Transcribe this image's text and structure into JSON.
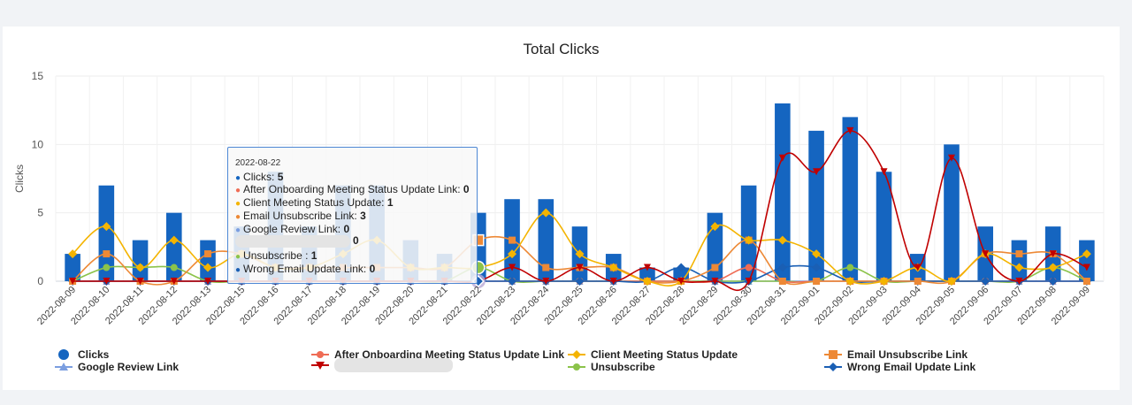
{
  "chart_data": {
    "type": "bar",
    "title": "Total Clicks",
    "ylabel": "Clicks",
    "xlabel": "",
    "ylim": [
      0,
      15
    ],
    "yticks": [
      0,
      5,
      10,
      15
    ],
    "grid": true,
    "legend_position": "bottom",
    "categories": [
      "2022-08-09",
      "2022-08-10",
      "2022-08-11",
      "2022-08-12",
      "2022-08-13",
      "2022-08-15",
      "2022-08-16",
      "2022-08-17",
      "2022-08-18",
      "2022-08-19",
      "2022-08-20",
      "2022-08-21",
      "2022-08-22",
      "2022-08-23",
      "2022-08-24",
      "2022-08-25",
      "2022-08-26",
      "2022-08-27",
      "2022-08-28",
      "2022-08-29",
      "2022-08-30",
      "2022-08-31",
      "2022-09-01",
      "2022-09-02",
      "2022-09-03",
      "2022-09-04",
      "2022-09-05",
      "2022-09-06",
      "2022-09-07",
      "2022-09-08",
      "2022-09-09"
    ],
    "series": [
      {
        "name": "Clicks",
        "kind": "bar",
        "color": "#1565c0",
        "marker": "circle",
        "values": [
          2,
          7,
          3,
          5,
          3,
          4,
          8,
          4,
          7,
          7,
          3,
          2,
          5,
          6,
          6,
          4,
          2,
          1,
          1,
          5,
          7,
          13,
          11,
          12,
          8,
          2,
          10,
          4,
          3,
          4,
          3
        ]
      },
      {
        "name": "After Onboarding Meeting Status Update Link",
        "kind": "line",
        "color": "#ef6c55",
        "marker": "circle",
        "values": [
          0,
          0,
          0,
          0,
          0,
          0,
          0,
          0,
          0,
          0,
          0,
          0,
          0,
          0,
          0,
          0,
          0,
          0,
          0,
          0,
          1,
          0,
          0,
          0,
          0,
          0,
          0,
          0,
          0,
          0,
          0
        ]
      },
      {
        "name": "Client Meeting Status Update",
        "kind": "line",
        "color": "#f4b400",
        "marker": "diamond",
        "values": [
          2,
          4,
          1,
          3,
          1,
          2,
          1,
          1,
          2,
          3,
          1,
          1,
          1,
          2,
          5,
          2,
          1,
          0,
          0,
          4,
          3,
          3,
          2,
          0,
          0,
          1,
          0,
          2,
          1,
          1,
          2
        ]
      },
      {
        "name": "Email Unsubscribe Link",
        "kind": "line",
        "color": "#ed8936",
        "marker": "square",
        "values": [
          0,
          2,
          0,
          0,
          2,
          2,
          1,
          1,
          1,
          1,
          1,
          1,
          3,
          3,
          1,
          1,
          1,
          0,
          0,
          1,
          3,
          0,
          0,
          0,
          0,
          0,
          0,
          2,
          2,
          2,
          0
        ]
      },
      {
        "name": "Google Review Link",
        "kind": "line",
        "color": "#7b9ee0",
        "marker": "triangle-up",
        "values": [
          0,
          0,
          0,
          0,
          0,
          0,
          0,
          0,
          0,
          0,
          0,
          0,
          0,
          0,
          0,
          0,
          0,
          0,
          0,
          0,
          0,
          0,
          0,
          0,
          0,
          0,
          0,
          0,
          0,
          0,
          0
        ]
      },
      {
        "name": "",
        "redacted": true,
        "kind": "line",
        "color": "#c00000",
        "marker": "triangle-down",
        "values": [
          0,
          0,
          0,
          0,
          0,
          0,
          0,
          0,
          0,
          0,
          0,
          0,
          0,
          1,
          0,
          1,
          0,
          1,
          0,
          0,
          0,
          9,
          8,
          11,
          8,
          1,
          9,
          2,
          0,
          2,
          1
        ]
      },
      {
        "name": "Unsubscribe",
        "kind": "line",
        "color": "#8bc34a",
        "marker": "circle",
        "values": [
          0,
          1,
          1,
          1,
          0,
          0,
          0,
          0,
          0,
          0,
          0,
          0,
          1,
          0,
          0,
          0,
          0,
          0,
          0,
          0,
          0,
          0,
          0,
          1,
          0,
          0,
          0,
          0,
          0,
          1,
          0
        ]
      },
      {
        "name": "Wrong Email Update Link",
        "kind": "line",
        "color": "#1a5fb4",
        "marker": "diamond",
        "values": [
          0,
          0,
          0,
          0,
          0,
          0,
          0,
          0,
          0,
          0,
          0,
          0,
          0,
          0,
          0,
          0,
          0,
          0,
          1,
          0,
          0,
          1,
          1,
          0,
          0,
          0,
          0,
          0,
          0,
          0,
          0
        ]
      }
    ],
    "tooltip": {
      "date": "2022-08-22",
      "rows": [
        {
          "label": "Clicks: ",
          "value": "5",
          "color": "#1565c0"
        },
        {
          "label": "After Onboarding Meeting Status Update Link: ",
          "value": "0",
          "color": "#ef6c55"
        },
        {
          "label": "Client Meeting Status Update: ",
          "value": "1",
          "color": "#f4b400"
        },
        {
          "label": "Email Unsubscribe Link: ",
          "value": "3",
          "color": "#ed8936"
        },
        {
          "label": "Google Review Link: ",
          "value": "0",
          "color": "#7b9ee0"
        },
        {
          "label": "",
          "value": "0",
          "color": "#c00000",
          "redacted": true
        },
        {
          "label": "Unsubscribe : ",
          "value": "1",
          "color": "#8bc34a"
        },
        {
          "label": "Wrong Email Update Link: ",
          "value": "0",
          "color": "#1a5fb4"
        }
      ]
    }
  }
}
